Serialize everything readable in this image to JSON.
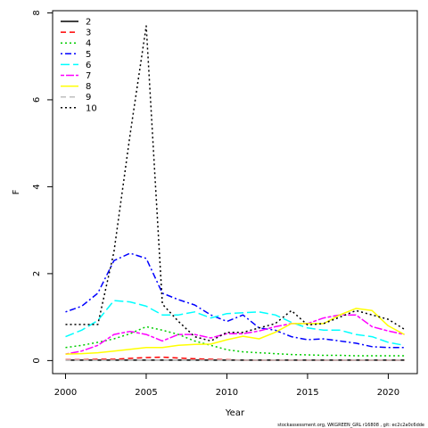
{
  "chart_data": {
    "type": "line",
    "xlabel": "Year",
    "ylabel": "F",
    "xlim": [
      1999.2,
      2021.8
    ],
    "ylim": [
      -0.3,
      8.05
    ],
    "x_ticks": [
      2000,
      2005,
      2010,
      2015,
      2020
    ],
    "y_ticks": [
      0,
      2,
      4,
      6,
      8
    ],
    "grid": false,
    "legend_placement": "top-left",
    "x": [
      2000,
      2001,
      2002,
      2003,
      2004,
      2005,
      2006,
      2007,
      2008,
      2009,
      2010,
      2011,
      2012,
      2013,
      2014,
      2015,
      2016,
      2017,
      2018,
      2019,
      2020,
      2021
    ],
    "series": [
      {
        "name": "2",
        "color": "#000000",
        "dash": "solid",
        "values": [
          0.01,
          0.01,
          0.01,
          0.01,
          0.01,
          0.01,
          0.01,
          0.01,
          0.01,
          0.01,
          0.01,
          0.01,
          0.01,
          0.01,
          0.01,
          0.01,
          0.01,
          0.01,
          0.01,
          0.01,
          0.01,
          0.01
        ]
      },
      {
        "name": "3",
        "color": "#ff0000",
        "dash": "dashed",
        "values": [
          0.02,
          0.02,
          0.03,
          0.03,
          0.05,
          0.07,
          0.08,
          0.06,
          0.04,
          0.03,
          0.02,
          0.01,
          0.01,
          0.01,
          0.01,
          0.01,
          0.01,
          0.01,
          0.01,
          0.01,
          0.01,
          0.01
        ]
      },
      {
        "name": "4",
        "color": "#00cd00",
        "dash": "dotted",
        "values": [
          0.3,
          0.35,
          0.42,
          0.5,
          0.62,
          0.78,
          0.7,
          0.6,
          0.45,
          0.35,
          0.25,
          0.2,
          0.18,
          0.16,
          0.14,
          0.13,
          0.12,
          0.12,
          0.11,
          0.11,
          0.11,
          0.11
        ]
      },
      {
        "name": "5",
        "color": "#0000ff",
        "dash": "dotdash",
        "values": [
          1.12,
          1.25,
          1.55,
          2.3,
          2.47,
          2.35,
          1.55,
          1.4,
          1.28,
          1.05,
          0.9,
          1.05,
          0.75,
          0.7,
          0.55,
          0.48,
          0.5,
          0.45,
          0.4,
          0.32,
          0.3,
          0.3
        ]
      },
      {
        "name": "6",
        "color": "#00ffff",
        "dash": "longdash",
        "values": [
          0.55,
          0.7,
          0.92,
          1.38,
          1.35,
          1.25,
          1.05,
          1.05,
          1.12,
          0.98,
          1.08,
          1.1,
          1.12,
          1.05,
          0.88,
          0.75,
          0.7,
          0.7,
          0.6,
          0.55,
          0.42,
          0.35
        ]
      },
      {
        "name": "7",
        "color": "#ff00ff",
        "dash": "twodash",
        "values": [
          0.15,
          0.22,
          0.35,
          0.6,
          0.67,
          0.6,
          0.45,
          0.6,
          0.6,
          0.52,
          0.62,
          0.62,
          0.68,
          0.78,
          0.85,
          0.85,
          0.98,
          1.05,
          1.05,
          0.78,
          0.68,
          0.6
        ]
      },
      {
        "name": "8",
        "color": "#ffff00",
        "dash": "solid",
        "values": [
          0.15,
          0.16,
          0.18,
          0.22,
          0.26,
          0.3,
          0.3,
          0.35,
          0.37,
          0.38,
          0.48,
          0.56,
          0.5,
          0.65,
          0.85,
          0.85,
          0.85,
          1.05,
          1.2,
          1.15,
          0.8,
          0.6
        ]
      },
      {
        "name": "9",
        "color": "#bebebe",
        "dash": "dashed",
        "values": [
          0.01,
          0.01,
          0.01,
          0.01,
          0.01,
          0.01,
          0.01,
          0.01,
          0.01,
          0.01,
          0.01,
          0.01,
          0.01,
          0.01,
          0.01,
          0.01,
          0.01,
          0.01,
          0.01,
          0.01,
          0.01,
          0.01
        ]
      },
      {
        "name": "10",
        "color": "#000000",
        "dash": "dotted",
        "values": [
          0.83,
          0.83,
          0.83,
          2.5,
          5.2,
          7.7,
          1.3,
          0.9,
          0.55,
          0.45,
          0.65,
          0.65,
          0.75,
          0.85,
          1.15,
          0.82,
          0.85,
          1.0,
          1.15,
          1.05,
          0.95,
          0.72
        ]
      }
    ]
  },
  "footer": "stockassessment.org,  WKGREEN_GRL r16808 ,  git: ec2c2a0c6dde"
}
